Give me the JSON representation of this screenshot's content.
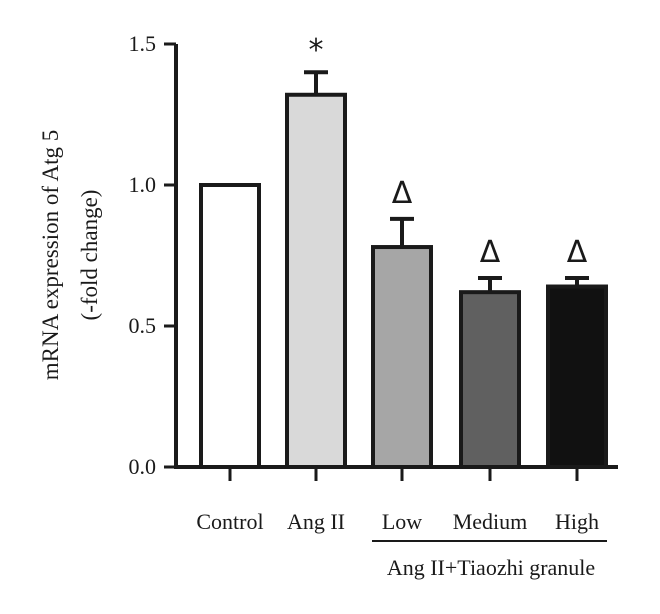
{
  "chart_data": {
    "type": "bar",
    "categories": [
      "Control",
      "Ang II",
      "Low",
      "Medium",
      "High"
    ],
    "values": [
      1.0,
      1.32,
      0.78,
      0.62,
      0.64
    ],
    "errors": [
      0.0,
      0.08,
      0.1,
      0.05,
      0.03
    ],
    "significance": [
      "",
      "*",
      "Δ",
      "Δ",
      "Δ"
    ],
    "bar_colors": [
      "#ffffff",
      "#d9d9d9",
      "#a6a6a6",
      "#606060",
      "#111111"
    ],
    "ylabel_line1": "mRNA expression of Atg 5",
    "ylabel_line2": "(-fold change)",
    "ylim": [
      0,
      1.5
    ],
    "yticks": [
      "0.0",
      "0.5",
      "1.0",
      "1.5"
    ],
    "group_label": "Ang II+Tiaozhi granule",
    "group_members": [
      "Low",
      "Medium",
      "High"
    ],
    "grid": false
  }
}
